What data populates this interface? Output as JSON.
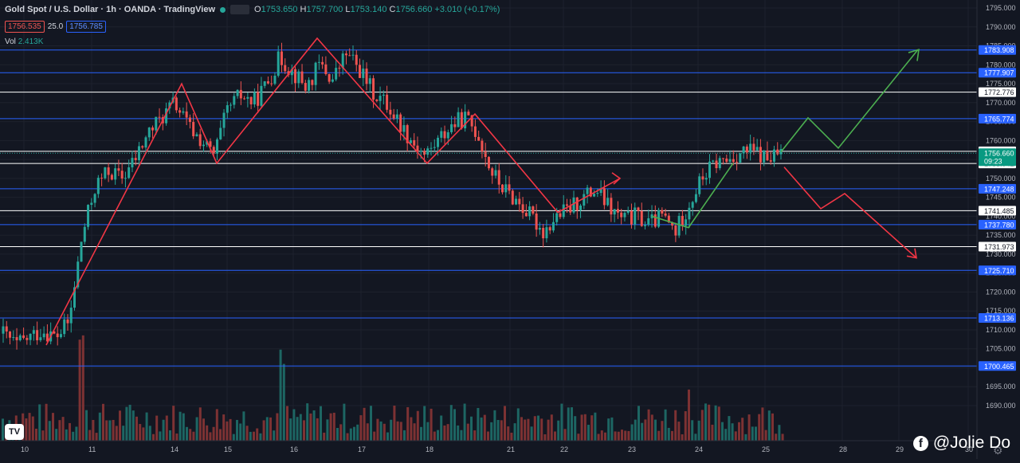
{
  "header": {
    "title": "Gold Spot / U.S. Dollar · 1h · OANDA · TradingView",
    "open": "1753.650",
    "high": "1757.700",
    "low": "1753.140",
    "close": "1756.660",
    "change": "+3.010 (+0.17%)",
    "sell": "1756.535",
    "spread": "25.0",
    "buy": "1756.785",
    "volume_label": "Vol",
    "volume": "2.413K"
  },
  "watermark": "@Jolie Do",
  "colors": {
    "bg": "#131722",
    "up": "#26a69a",
    "down": "#ef5350",
    "blue_line": "#2962ff",
    "white_line": "#ffffff",
    "axis_text": "#b2b5be"
  },
  "chart_data": {
    "type": "candlestick",
    "y_axis": {
      "min": 1685,
      "max": 1800,
      "ticks": [
        1690,
        1695,
        1700,
        1705,
        1710,
        1715,
        1720,
        1725,
        1730,
        1735,
        1740,
        1745,
        1750,
        1755,
        1760,
        1765,
        1770,
        1775,
        1780,
        1785,
        1790,
        1795
      ]
    },
    "x_ticks": [
      "10",
      "11",
      "14",
      "15",
      "16",
      "17",
      "18",
      "21",
      "22",
      "23",
      "24",
      "25",
      "28",
      "29",
      "30"
    ],
    "levels": [
      {
        "value": 1783.908,
        "label": "1783.908",
        "style": "blue"
      },
      {
        "value": 1777.907,
        "label": "1777.907",
        "style": "blue"
      },
      {
        "value": 1772.776,
        "label": "1772.776",
        "style": "white"
      },
      {
        "value": 1765.774,
        "label": "1765.774",
        "style": "blue"
      },
      {
        "value": 1757.16,
        "label": "1757.160",
        "style": "white"
      },
      {
        "value": 1753.942,
        "label": "1753.942",
        "style": "white"
      },
      {
        "value": 1747.248,
        "label": "1747.248",
        "style": "blue"
      },
      {
        "value": 1741.485,
        "label": "1741.485",
        "style": "white"
      },
      {
        "value": 1737.78,
        "label": "1737.780",
        "style": "blue"
      },
      {
        "value": 1731.973,
        "label": "1731.973",
        "style": "white"
      },
      {
        "value": 1725.71,
        "label": "1725.710",
        "style": "blue"
      },
      {
        "value": 1713.136,
        "label": "1713.136",
        "style": "blue"
      },
      {
        "value": 1700.465,
        "label": "1700.465",
        "style": "blue"
      }
    ],
    "last_price": {
      "value": 1756.66,
      "label": "1756.660",
      "countdown": "09:23"
    },
    "price_path": [
      {
        "d": "10",
        "p": 1709
      },
      {
        "d": "10",
        "p": 1706
      },
      {
        "d": "10",
        "p": 1708
      },
      {
        "d": "10",
        "p": 1710
      },
      {
        "d": "10",
        "p": 1708
      },
      {
        "d": "11",
        "p": 1712
      },
      {
        "d": "11",
        "p": 1735
      },
      {
        "d": "11",
        "p": 1748
      },
      {
        "d": "11",
        "p": 1752
      },
      {
        "d": "11",
        "p": 1750
      },
      {
        "d": "11",
        "p": 1755
      },
      {
        "d": "14",
        "p": 1762
      },
      {
        "d": "14",
        "p": 1766
      },
      {
        "d": "14",
        "p": 1770
      },
      {
        "d": "14",
        "p": 1764
      },
      {
        "d": "14",
        "p": 1760
      },
      {
        "d": "15",
        "p": 1756
      },
      {
        "d": "15",
        "p": 1768
      },
      {
        "d": "15",
        "p": 1772
      },
      {
        "d": "15",
        "p": 1770
      },
      {
        "d": "15",
        "p": 1775
      },
      {
        "d": "16",
        "p": 1782
      },
      {
        "d": "16",
        "p": 1778
      },
      {
        "d": "16",
        "p": 1774
      },
      {
        "d": "16",
        "p": 1780
      },
      {
        "d": "17",
        "p": 1776
      },
      {
        "d": "17",
        "p": 1783
      },
      {
        "d": "17",
        "p": 1779
      },
      {
        "d": "17",
        "p": 1773
      },
      {
        "d": "17",
        "p": 1770
      },
      {
        "d": "18",
        "p": 1765
      },
      {
        "d": "18",
        "p": 1760
      },
      {
        "d": "18",
        "p": 1756
      },
      {
        "d": "18",
        "p": 1760
      },
      {
        "d": "18",
        "p": 1764
      },
      {
        "d": "18",
        "p": 1766
      },
      {
        "d": "21",
        "p": 1762
      },
      {
        "d": "21",
        "p": 1752
      },
      {
        "d": "21",
        "p": 1747
      },
      {
        "d": "21",
        "p": 1744
      },
      {
        "d": "21",
        "p": 1740
      },
      {
        "d": "22",
        "p": 1736
      },
      {
        "d": "22",
        "p": 1740
      },
      {
        "d": "22",
        "p": 1742
      },
      {
        "d": "22",
        "p": 1745
      },
      {
        "d": "22",
        "p": 1747
      },
      {
        "d": "23",
        "p": 1742
      },
      {
        "d": "23",
        "p": 1739
      },
      {
        "d": "23",
        "p": 1740
      },
      {
        "d": "23",
        "p": 1738
      },
      {
        "d": "23",
        "p": 1740
      },
      {
        "d": "24",
        "p": 1736
      },
      {
        "d": "24",
        "p": 1743
      },
      {
        "d": "24",
        "p": 1750
      },
      {
        "d": "24",
        "p": 1754
      },
      {
        "d": "24",
        "p": 1755
      },
      {
        "d": "25",
        "p": 1757
      },
      {
        "d": "25",
        "p": 1757
      },
      {
        "d": "25",
        "p": 1755
      },
      {
        "d": "25",
        "p": 1756.66
      }
    ],
    "volume_scale": "relative",
    "zigzag_red": [
      [
        1709,
        "10"
      ],
      [
        1774,
        "14"
      ],
      [
        1756,
        "15"
      ],
      [
        1787,
        "16"
      ],
      [
        1756,
        "18"
      ],
      [
        1767,
        "18"
      ],
      [
        1740,
        "22"
      ],
      [
        1748,
        "22"
      ]
    ],
    "projection_up": [
      1757,
      1766,
      1758,
      1784
    ],
    "projection_down": [
      1753,
      1742,
      1746,
      1729
    ]
  }
}
